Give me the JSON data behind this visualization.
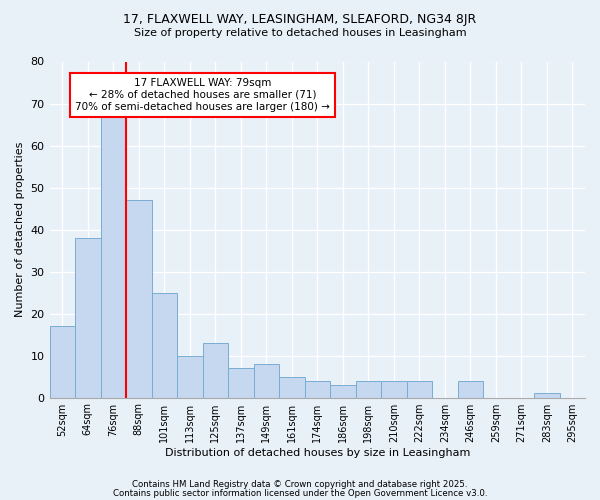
{
  "title1": "17, FLAXWELL WAY, LEASINGHAM, SLEAFORD, NG34 8JR",
  "title2": "Size of property relative to detached houses in Leasingham",
  "xlabel": "Distribution of detached houses by size in Leasingham",
  "ylabel": "Number of detached properties",
  "bar_values": [
    17,
    38,
    67,
    47,
    25,
    10,
    13,
    7,
    8,
    5,
    4,
    3,
    4,
    4,
    4,
    0,
    4,
    0,
    0,
    1
  ],
  "bar_labels": [
    "52sqm",
    "64sqm",
    "76sqm",
    "88sqm",
    "101sqm",
    "113sqm",
    "125sqm",
    "137sqm",
    "149sqm",
    "161sqm",
    "174sqm",
    "186sqm",
    "198sqm",
    "210sqm",
    "222sqm",
    "234sqm",
    "246sqm",
    "259sqm",
    "271sqm",
    "283sqm",
    "295sqm"
  ],
  "bar_color": "#c5d8f0",
  "bar_edge_color": "#7aadd4",
  "red_line_x": 2.5,
  "annotation_text": "17 FLAXWELL WAY: 79sqm\n← 28% of detached houses are smaller (71)\n70% of semi-detached houses are larger (180) →",
  "annotation_box_color": "white",
  "annotation_box_edge_color": "red",
  "red_line_color": "red",
  "ylim": [
    0,
    80
  ],
  "yticks": [
    0,
    10,
    20,
    30,
    40,
    50,
    60,
    70,
    80
  ],
  "footer1": "Contains HM Land Registry data © Crown copyright and database right 2025.",
  "footer2": "Contains public sector information licensed under the Open Government Licence v3.0.",
  "bg_color": "#e8f0f8",
  "plot_bg_color": "#e8f0f8"
}
